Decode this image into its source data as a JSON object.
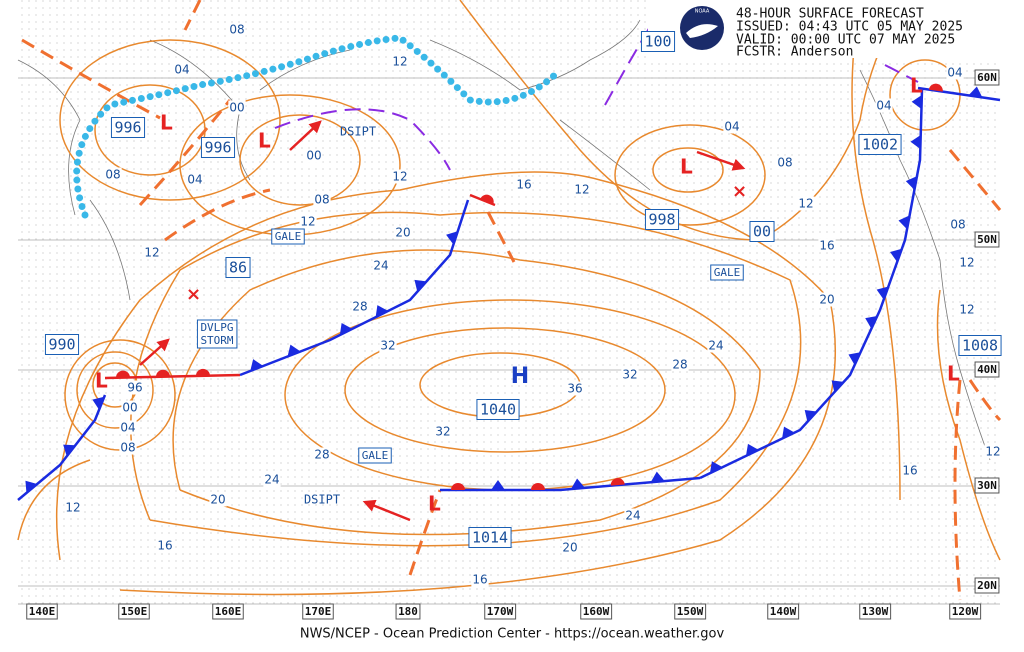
{
  "header": {
    "lines": [
      "48-HOUR SURFACE FORECAST",
      "ISSUED: 04:43 UTC 05 MAY 2025",
      "VALID:  00:00 UTC 07 MAY 2025",
      "FCSTR:  Anderson"
    ],
    "logo_text": "NOAA"
  },
  "map": {
    "longitudes": [
      "140E",
      "150E",
      "160E",
      "170E",
      "180",
      "170W",
      "160W",
      "150W",
      "140W",
      "130W",
      "120W"
    ],
    "latitudes": [
      "60N",
      "50N",
      "40N",
      "30N",
      "20N"
    ],
    "pressure_centers": [
      "996",
      "996",
      "990",
      "86",
      "1040",
      "1014",
      "998",
      "00",
      "1002",
      "1008",
      "100"
    ],
    "high": "H",
    "boxed_notes": [
      [
        "GALE"
      ],
      [
        "DVLPG",
        "STORM"
      ],
      [
        "GALE"
      ],
      [
        "GALE"
      ]
    ],
    "dsipt": [
      "DSIPT",
      "DSIPT"
    ],
    "isobar_labels": [
      "08",
      "04",
      "00",
      "08",
      "04",
      "00",
      "08",
      "12",
      "12",
      "12",
      "16",
      "12",
      "04",
      "08",
      "12",
      "16",
      "20",
      "24",
      "28",
      "32",
      "36",
      "32",
      "28",
      "24",
      "20",
      "16",
      "12",
      "08",
      "04",
      "00",
      "96",
      "12",
      "20",
      "24",
      "28",
      "32",
      "24",
      "20",
      "16",
      "16",
      "12",
      "12",
      "12",
      "08",
      "04",
      "04"
    ]
  },
  "footer": "NWS/NCEP - Ocean Prediction Center - https://ocean.weather.gov"
}
